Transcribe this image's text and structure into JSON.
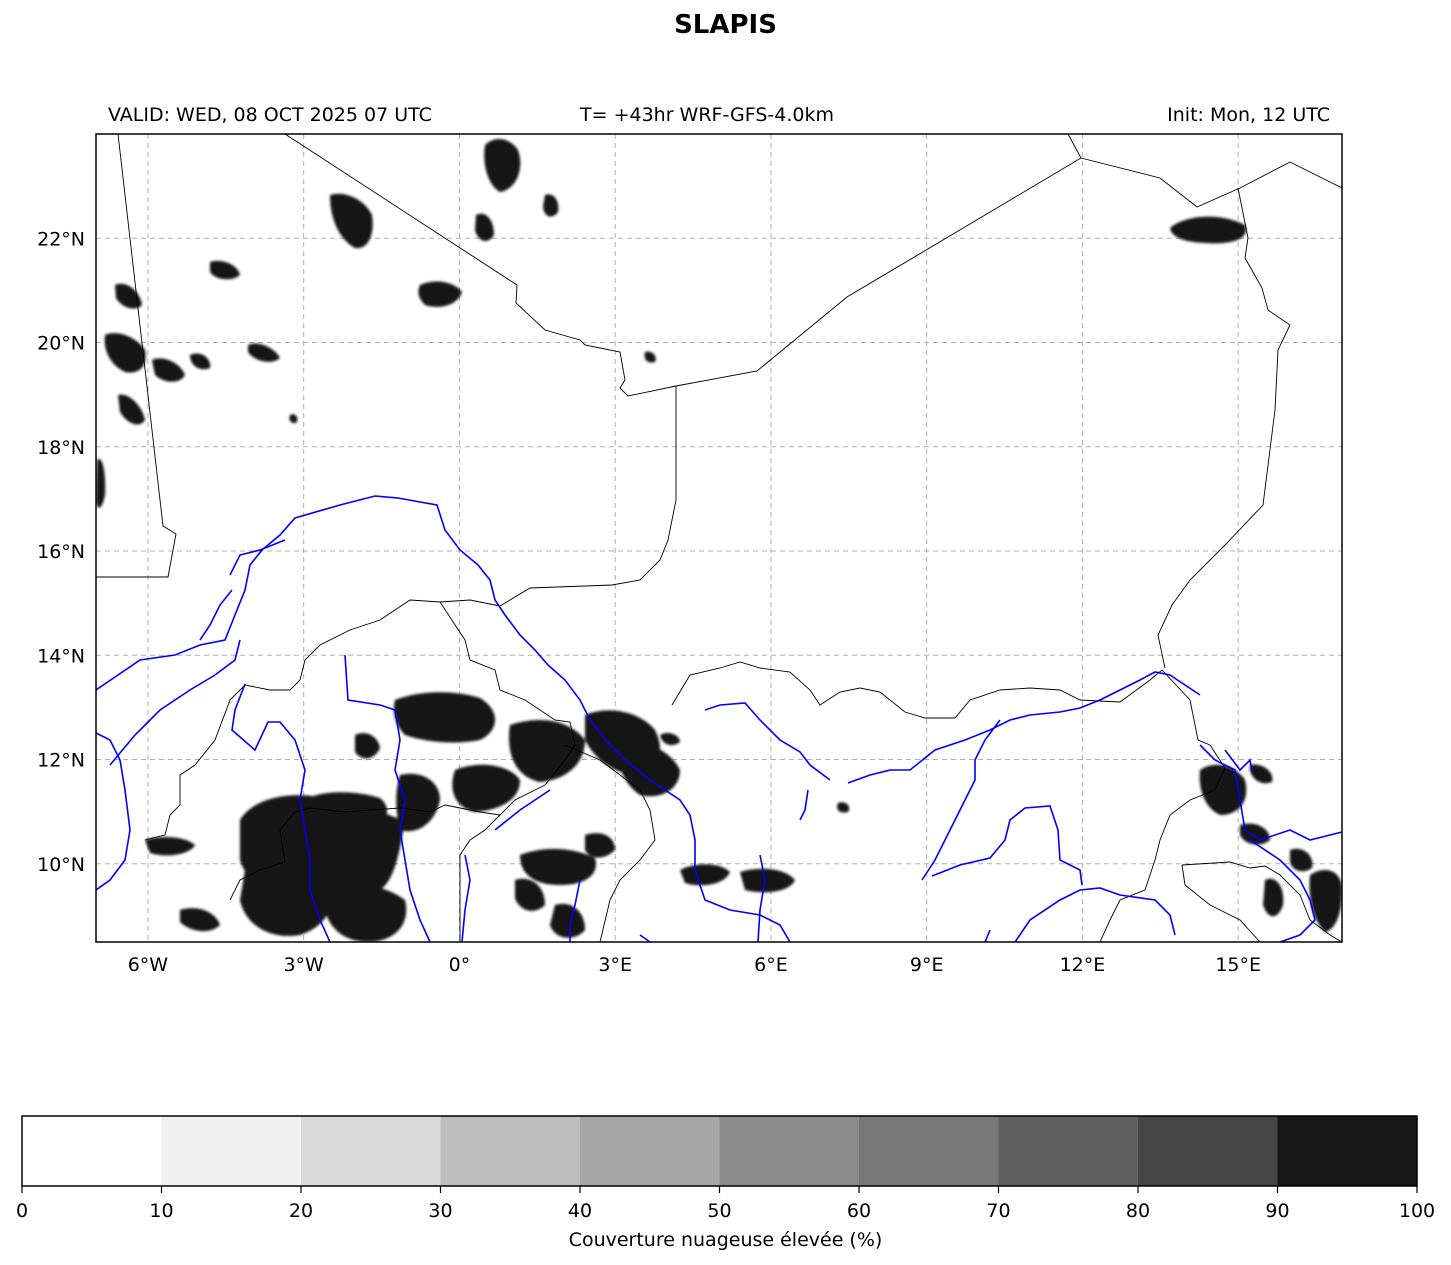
{
  "title": "SLAPIS",
  "header": {
    "valid": "VALID: WED, 08 OCT 2025 07 UTC",
    "run": "T= +43hr WRF-GFS-4.0km",
    "init": "Init: Mon, 12 UTC"
  },
  "map": {
    "lon_range": [
      -7,
      17
    ],
    "lat_range": [
      8.5,
      24
    ],
    "lon_ticks": [
      {
        "value": -6,
        "label": "6°W"
      },
      {
        "value": -3,
        "label": "3°W"
      },
      {
        "value": 0,
        "label": "0°"
      },
      {
        "value": 3,
        "label": "3°E"
      },
      {
        "value": 6,
        "label": "6°E"
      },
      {
        "value": 9,
        "label": "9°E"
      },
      {
        "value": 12,
        "label": "12°E"
      },
      {
        "value": 15,
        "label": "15°E"
      }
    ],
    "lat_ticks": [
      {
        "value": 10,
        "label": "10°N"
      },
      {
        "value": 12,
        "label": "12°N"
      },
      {
        "value": 14,
        "label": "14°N"
      },
      {
        "value": 16,
        "label": "16°N"
      },
      {
        "value": 18,
        "label": "18°N"
      },
      {
        "value": 20,
        "label": "20°N"
      },
      {
        "value": 22,
        "label": "22°N"
      }
    ],
    "gridlines": true,
    "colors": {
      "borders": "#000000",
      "rivers": "#0000ff",
      "grid": "#b0b0b0"
    }
  },
  "colorbar": {
    "label": "Couverture nuageuse élevée (%)",
    "ticks": [
      "0",
      "10",
      "20",
      "30",
      "40",
      "50",
      "60",
      "70",
      "80",
      "90",
      "100"
    ],
    "colors": [
      "#ffffff",
      "#f0f0f0",
      "#d9d9d9",
      "#bdbdbd",
      "#a6a6a6",
      "#8c8c8c",
      "#787878",
      "#606060",
      "#454545",
      "#181818"
    ]
  }
}
